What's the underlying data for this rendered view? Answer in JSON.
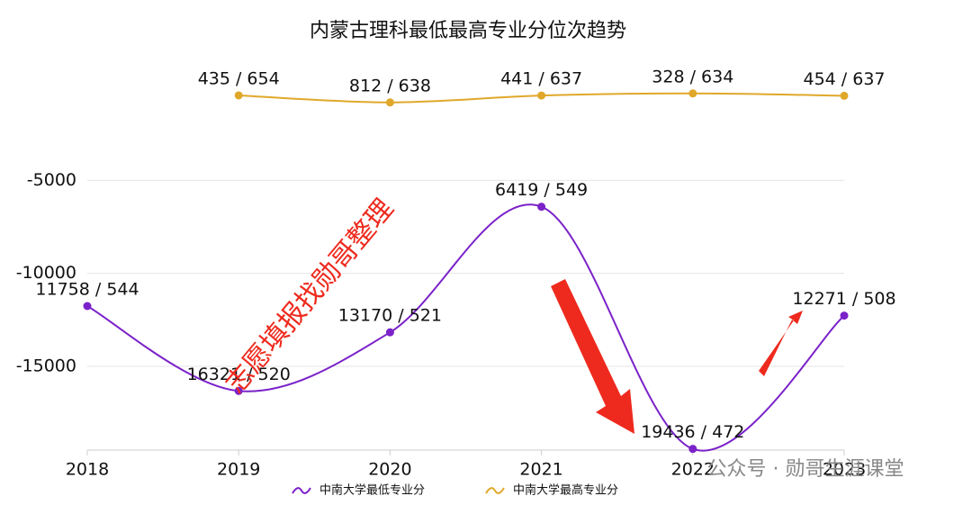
{
  "chart_data": {
    "type": "line",
    "title": "内蒙古理科最低最高专业分位次趋势",
    "categories": [
      "2018",
      "2019",
      "2020",
      "2021",
      "2022",
      "2023"
    ],
    "series": [
      {
        "name": "中南大学最低专业分",
        "color": "#7b22c9",
        "values": [
          -11758,
          -16321,
          -13170,
          -6419,
          -19436,
          -12271
        ],
        "value_labels": [
          "11758 / 544",
          "16321 / 520",
          "13170 / 521",
          "6419 / 549",
          "19436 / 472",
          "12271 / 508"
        ]
      },
      {
        "name": "中南大学最高专业分",
        "color": "#e0a82a",
        "values": [
          null,
          -435,
          -812,
          -441,
          -328,
          -454
        ],
        "value_labels": [
          null,
          "435 / 654",
          "812 / 638",
          "441 / 637",
          "328 / 634",
          "454 / 637"
        ]
      }
    ],
    "ylim": [
      -19500,
      0
    ],
    "yticks": [
      -5000,
      -10000,
      -15000
    ],
    "grid": true,
    "smooth": true,
    "legend": "bottom",
    "annotations": [
      "志愿填报找勋哥整理",
      "公众号 · 勋哥生涯课堂"
    ]
  }
}
